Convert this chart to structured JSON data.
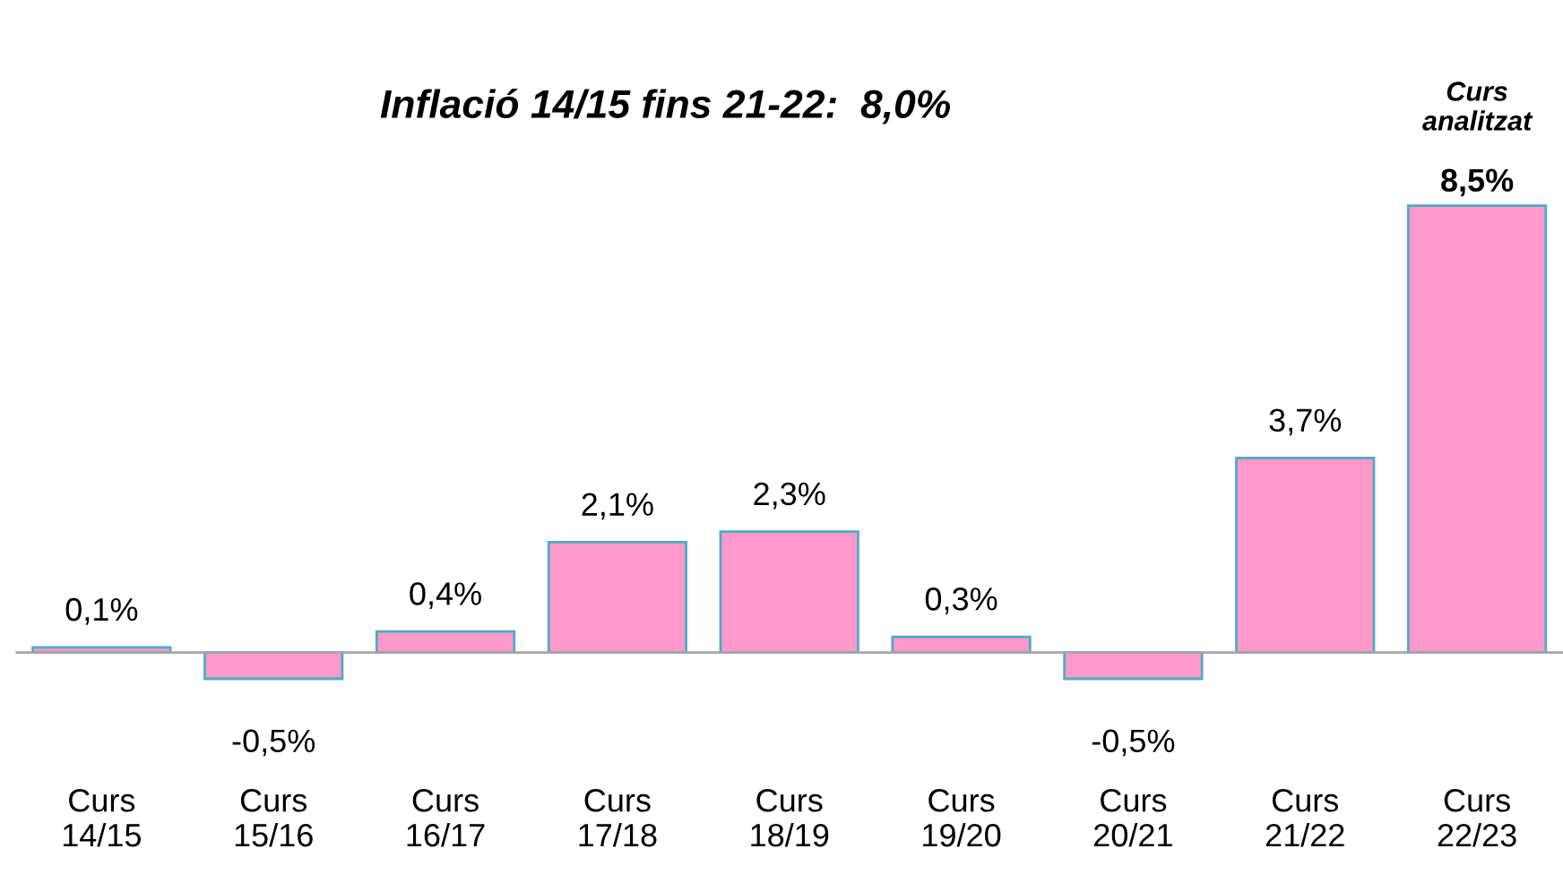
{
  "chart_data": {
    "type": "bar",
    "categories": [
      "Curs\n14/15",
      "Curs\n15/16",
      "Curs\n16/17",
      "Curs\n17/18",
      "Curs\n18/19",
      "Curs\n19/20",
      "Curs\n20/21",
      "Curs\n21/22",
      "Curs\n22/23"
    ],
    "values": [
      0.1,
      -0.5,
      0.4,
      2.1,
      2.3,
      0.3,
      -0.5,
      3.7,
      8.5
    ],
    "color": "#ff99cc",
    "value_labels": [
      "0,1%",
      "-0,5%",
      "0,4%",
      "2,1%",
      "2,3%",
      "0,3%",
      "-0,5%",
      "3,7%",
      "8,5%"
    ],
    "annotations": [
      "Inflació 14/15 fins 21-22:  8,0%",
      "Curs\nanalitzat"
    ],
    "grid": false,
    "legend": false
  }
}
